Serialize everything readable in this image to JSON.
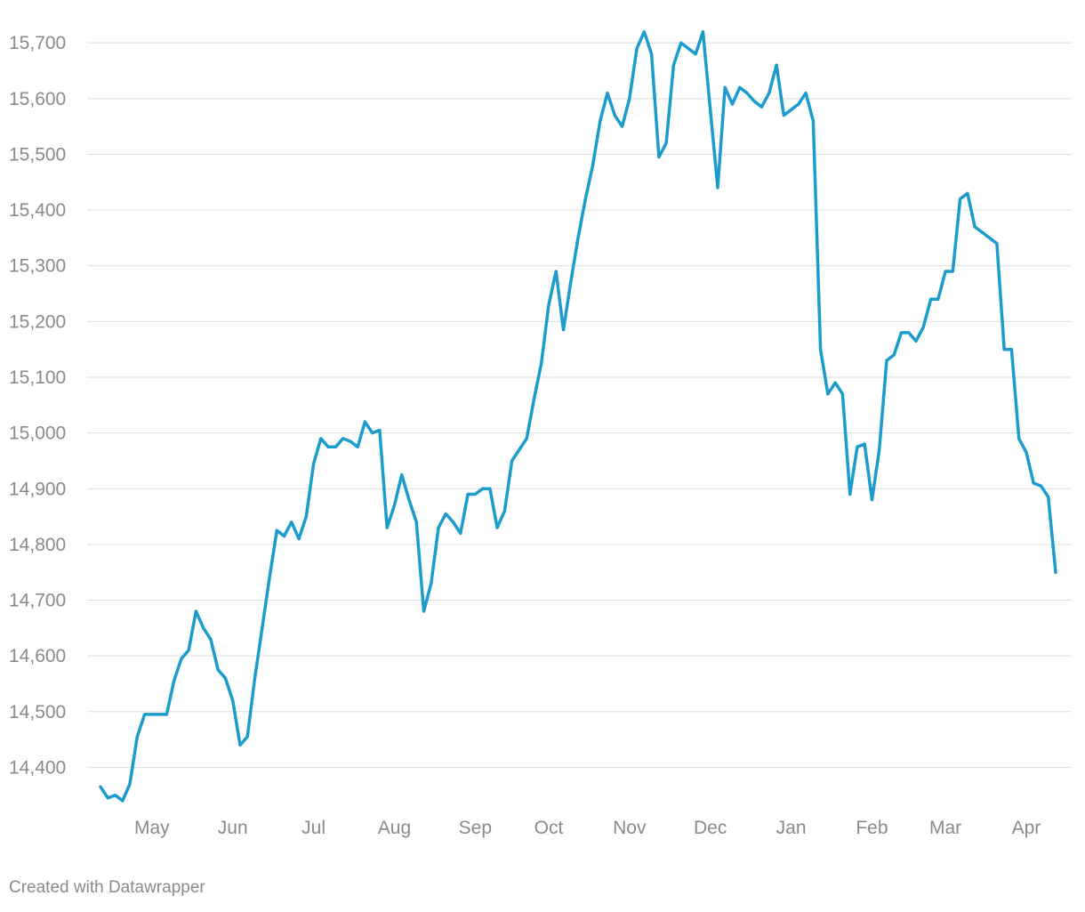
{
  "chart_data": {
    "type": "line",
    "footer": "Created with Datawrapper",
    "color": "#1b9ccc",
    "grid": true,
    "ylim": [
      14340,
      15745
    ],
    "yticks": [
      {
        "value": 14400,
        "label": "14,400"
      },
      {
        "value": 14500,
        "label": "14,500"
      },
      {
        "value": 14600,
        "label": "14,600"
      },
      {
        "value": 14700,
        "label": "14,700"
      },
      {
        "value": 14800,
        "label": "14,800"
      },
      {
        "value": 14900,
        "label": "14,900"
      },
      {
        "value": 15000,
        "label": "15,000"
      },
      {
        "value": 15100,
        "label": "15,100"
      },
      {
        "value": 15200,
        "label": "15,200"
      },
      {
        "value": 15300,
        "label": "15,300"
      },
      {
        "value": 15400,
        "label": "15,400"
      },
      {
        "value": 15500,
        "label": "15,500"
      },
      {
        "value": 15600,
        "label": "15,600"
      },
      {
        "value": 15700,
        "label": "15,700"
      }
    ],
    "categories": [
      null,
      null,
      null,
      null,
      null,
      null,
      null,
      "May",
      null,
      null,
      null,
      null,
      null,
      null,
      null,
      null,
      null,
      null,
      "Jun",
      null,
      null,
      null,
      null,
      null,
      null,
      null,
      null,
      null,
      null,
      "Jul",
      null,
      null,
      null,
      null,
      null,
      null,
      null,
      null,
      null,
      null,
      "Aug",
      null,
      null,
      null,
      null,
      null,
      null,
      null,
      null,
      null,
      null,
      "Sep",
      null,
      null,
      null,
      null,
      null,
      null,
      null,
      null,
      null,
      "Oct",
      null,
      null,
      null,
      null,
      null,
      null,
      null,
      null,
      null,
      null,
      "Nov",
      null,
      null,
      null,
      null,
      null,
      null,
      null,
      null,
      null,
      null,
      "Dec",
      null,
      null,
      null,
      null,
      null,
      null,
      null,
      null,
      null,
      null,
      "Jan",
      null,
      null,
      null,
      null,
      null,
      null,
      null,
      null,
      null,
      null,
      "Feb",
      null,
      null,
      null,
      null,
      null,
      null,
      null,
      null,
      null,
      "Mar",
      null,
      null,
      null,
      null,
      null,
      null,
      null,
      null,
      null,
      null,
      "Apr",
      null,
      null,
      null,
      null
    ],
    "values": [
      14365,
      14345,
      14350,
      14340,
      14370,
      14455,
      14495,
      14495,
      14495,
      14495,
      14555,
      14595,
      14610,
      14680,
      14650,
      14630,
      14575,
      14560,
      14520,
      14440,
      14455,
      14560,
      14650,
      14740,
      14825,
      14815,
      14840,
      14810,
      14850,
      14945,
      14990,
      14975,
      14975,
      14990,
      14985,
      14975,
      15020,
      15000,
      15005,
      14830,
      14870,
      14925,
      14880,
      14840,
      14680,
      14730,
      14830,
      14855,
      14840,
      14820,
      14890,
      14890,
      14900,
      14900,
      14830,
      14860,
      14950,
      14970,
      14990,
      15060,
      15125,
      15230,
      15290,
      15185,
      15270,
      15350,
      15420,
      15480,
      15560,
      15610,
      15570,
      15550,
      15600,
      15690,
      15720,
      15680,
      15495,
      15520,
      15660,
      15700,
      15690,
      15680,
      15720,
      15580,
      15440,
      15620,
      15590,
      15620,
      15610,
      15595,
      15585,
      15610,
      15660,
      15570,
      15580,
      15590,
      15610,
      15560,
      15150,
      15070,
      15090,
      15070,
      14890,
      14975,
      14980,
      14880,
      14970,
      15130,
      15140,
      15180,
      15180,
      15165,
      15190,
      15240,
      15240,
      15290,
      15290,
      15420,
      15430,
      15370,
      15360,
      15350,
      15340,
      15150,
      15150,
      14990,
      14965,
      14910,
      14905,
      14885,
      14750
    ]
  }
}
